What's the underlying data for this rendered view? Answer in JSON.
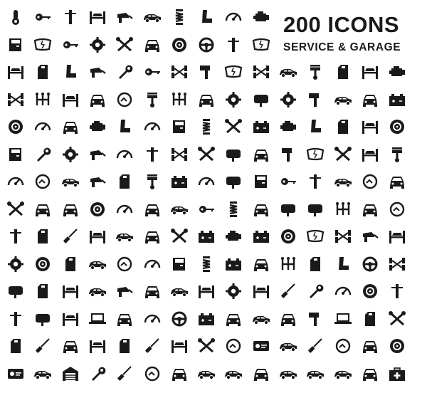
{
  "header": {
    "title": "200 ICONS",
    "subtitle": "SERVICE & GARAGE"
  },
  "icons": [
    "thermometer-icon",
    "car-key-icon",
    "gear-shifter-icon",
    "car-on-lift-icon",
    "fuel-nozzle-icon",
    "car-side-icon",
    "spring-shock-icon",
    "car-seat-icon",
    "speedometer-icon",
    "engine-icon",
    "car-door-icon",
    "cracked-windshield-icon",
    "remote-key-icon",
    "award-badge-icon",
    "jumper-cable-icon",
    "car-wrench-icon",
    "tire-icon",
    "steering-wheel-icon",
    "gear-stick-icon",
    "windshield-wiper-icon",
    "car-lift-icon",
    "engine-oil-icon",
    "car-seat-side-icon",
    "car-spray-icon",
    "wrench-car-icon",
    "car-key-icon",
    "chassis-axle-icon",
    "exhaust-bar-icon",
    "wiper-blade-icon",
    "axle-icon",
    "sedan-icon",
    "piston-icon",
    "jerry-can-icon",
    "car-jack-icon",
    "engine-front-icon",
    "axle-gear-icon",
    "gear-shift-pattern-icon",
    "car-on-ramp-icon",
    "car-wash-icon",
    "car-24h-service-icon",
    "spark-plug-icon",
    "gearbox-icon",
    "car-front-icon",
    "turbo-icon",
    "side-mirror-icon",
    "timing-belt-icon",
    "exhaust-pipe-icon",
    "coupe-icon",
    "car-shield-icon",
    "battery-icon",
    "tire-tread-icon",
    "speedometer-icon",
    "car-headlight-icon",
    "car-engine-icon",
    "car-person-icon",
    "magnifier-car-icon",
    "car-top-view-icon",
    "coil-spring-icon",
    "wrench-screwdriver-icon",
    "air-filter-icon",
    "engine-block-icon",
    "car-seat-icon",
    "fuel-pump-icon",
    "car-top-lift-icon",
    "brake-disc-icon",
    "car-top-view-icon",
    "wrench-icon",
    "gear-icon",
    "spray-gun-icon",
    "speedometer-car-icon",
    "gear-knob-icon",
    "axle-icon",
    "pliers-icon",
    "brake-pads-icon",
    "car-rear-view-icon",
    "muffler-icon",
    "windshield-icon",
    "wrench-cross-icon",
    "car-service-icon",
    "piston-rod-icon",
    "car-service-dashboard-icon",
    "24h-tools-icon",
    "car-side-icon",
    "car-fuel-icon",
    "car-oil-icon",
    "spark-plug-icon",
    "radiator-icon",
    "gauge-icon",
    "head-gasket-icon",
    "car-top-view-icon",
    "car-keys-icon",
    "gear-knob-icon",
    "car-cloud-icon",
    "car-24h-icon",
    "car-warning-icon",
    "crossed-wrenches-icon",
    "car-shield-check-icon",
    "car-front-icon",
    "tire-wheel-icon",
    "tire-pump-icon",
    "car-wrench-icon",
    "car-profile-icon",
    "key-search-icon",
    "coil-shock-icon",
    "car-wash-icon",
    "rear-view-mirror-icon",
    "headlight-icon",
    "gear-pattern-icon",
    "car-front-icon",
    "car-24h-icon",
    "air-pump-icon",
    "antifreeze-icon",
    "dipstick-icon",
    "car-lift-icon",
    "tow-truck-icon",
    "car-diagnose-icon",
    "car-tools-icon",
    "radiator-icon",
    "car-parts-icon",
    "fuse-icon",
    "rim-icon",
    "wiper-icon",
    "chassis-icon",
    "oil-can-icon",
    "car-ramp-icon",
    "timing-chain-icon",
    "brake-drum-icon",
    "gas-station-icon",
    "car-side-icon",
    "car-24h-icon",
    "dashboard-icon",
    "car-door-icon",
    "shock-absorber-icon",
    "battery-plus-minus-icon",
    "car-repair-icon",
    "gearbox-pattern-icon",
    "fuel-pump-icon",
    "mechanic-icon",
    "steering-wheel-icon",
    "chassis-icon",
    "headlight-icon",
    "fuel-station-icon",
    "car-jack-icon",
    "tow-truck-icon",
    "spray-icon",
    "car-check-icon",
    "cars-icon",
    "car-wash-station-icon",
    "gear-car-icon",
    "car-lift-top-icon",
    "wiper-arm-icon",
    "wrench-icon",
    "dashboard-gauges-icon",
    "tire-side-icon",
    "gear-shifter-icon",
    "gear-lever-icon",
    "rear-view-mirror-icon",
    "car-lift-icon",
    "laptop-diagnostics-icon",
    "car-wrench-icon",
    "speedometer-icon",
    "steering-wheel-icon",
    "radiator-grill-icon",
    "car-fix-icon",
    "car-sedan-icon",
    "car-front-icon",
    "hammer-icon",
    "car-diagnostic-icon",
    "car-oil-icon",
    "wrench-screwdriver-icon",
    "jerry-can-icon",
    "tire-iron-icon",
    "car-front-icon",
    "car-lift-icon",
    "oil-bottle-icon",
    "screwdriver-icon",
    "car-lift-double-icon",
    "wrench-pair-icon",
    "24h-wrench-icon",
    "driver-license-icon",
    "car-side-icon",
    "wiper-arm-icon",
    "car-24h-icon",
    "car-front-icon",
    "wheel-hub-icon",
    "car-service-list-icon",
    "car-side-icon",
    "garage-icon",
    "wrench-icon",
    "screwdriver-icon",
    "car-24h-icon",
    "car-front-icon",
    "car-side-icon",
    "car-side-icon",
    "car-front-icon",
    "car-side-icon",
    "car-side-icon",
    "car-hand-icon",
    "car-wash-icon",
    "first-aid-kit-icon"
  ]
}
